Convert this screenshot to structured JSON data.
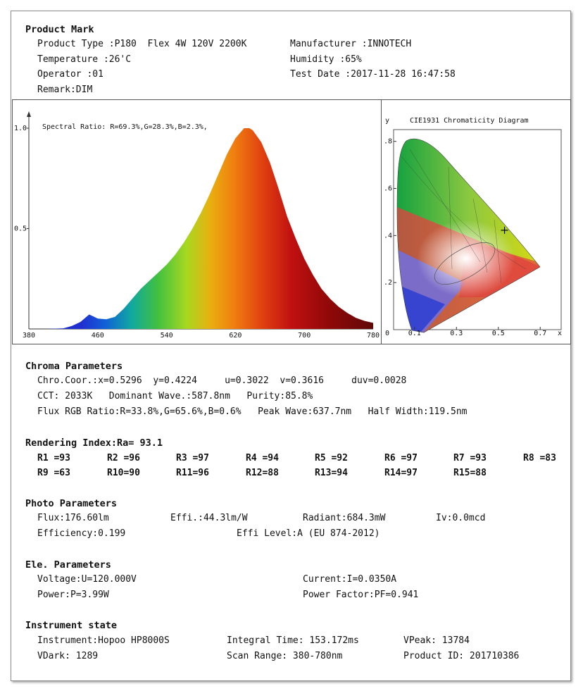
{
  "product_mark": {
    "heading": "Product Mark",
    "product_type": "Product Type :P180  Flex 4W 120V 2200K",
    "manufacturer": "Manufacturer :INNOTECH",
    "temperature": "Temperature :26'C",
    "humidity": "Humidity :65%",
    "operator": "Operator :01",
    "test_date": "Test Date :2017-11-28 16:47:58",
    "remark": "Remark:DIM"
  },
  "chart_data": [
    {
      "type": "area",
      "title": "Spectral Ratio:  R=69.3%,G=28.3%,B=2.3%,",
      "xlabel": "",
      "ylabel": "",
      "xlim": [
        380,
        780
      ],
      "ylim": [
        0,
        1.0
      ],
      "x_ticks": [
        "380",
        "460",
        "540",
        "620",
        "700",
        "780"
      ],
      "y_ticks": [
        "1.0",
        "0.5"
      ],
      "x": [
        380,
        400,
        420,
        430,
        440,
        450,
        455,
        460,
        470,
        480,
        490,
        500,
        510,
        520,
        530,
        540,
        550,
        560,
        570,
        580,
        590,
        600,
        610,
        620,
        630,
        636,
        640,
        650,
        660,
        670,
        680,
        690,
        700,
        710,
        720,
        730,
        740,
        750,
        760,
        770,
        780
      ],
      "values": [
        0,
        0,
        0.003,
        0.015,
        0.035,
        0.072,
        0.062,
        0.052,
        0.048,
        0.06,
        0.1,
        0.15,
        0.2,
        0.24,
        0.28,
        0.32,
        0.37,
        0.43,
        0.5,
        0.58,
        0.67,
        0.77,
        0.87,
        0.95,
        1.0,
        1.0,
        0.99,
        0.93,
        0.83,
        0.7,
        0.56,
        0.45,
        0.35,
        0.27,
        0.2,
        0.15,
        0.11,
        0.08,
        0.055,
        0.04,
        0.03
      ]
    },
    {
      "type": "scatter",
      "title": "CIE1931 Chromaticity Diagram",
      "xlabel": "x",
      "ylabel": "y",
      "x_ticks": [
        "0",
        "0.1",
        "0.3",
        "0.5",
        "0.7"
      ],
      "y_ticks": [
        ".8",
        ".6",
        ".4",
        ".2"
      ],
      "xlim": [
        0,
        0.8
      ],
      "ylim": [
        0,
        0.85
      ],
      "point": {
        "x": 0.5296,
        "y": 0.4224
      }
    }
  ],
  "chroma": {
    "heading": "Chroma Parameters",
    "line1": "Chro.Coor.:x=0.5296  y=0.4224     u=0.3022  v=0.3616     duv=0.0028",
    "line2": "CCT: 2033K   Dominant Wave.:587.8nm   Purity:85.8%",
    "line3": "Flux RGB Ratio:R=33.8%,G=65.6%,B=0.6%   Peak Wave:637.7nm   Half Width:119.5nm"
  },
  "rendering": {
    "heading": "Rendering Index:Ra= 93.1",
    "row1": [
      "R1 =93",
      "R2 =96",
      "R3 =97",
      "R4 =94",
      "R5 =92",
      "R6 =97",
      "R7 =93",
      "R8 =83"
    ],
    "row2": [
      "R9 =63",
      "R10=90",
      "R11=96",
      "R12=88",
      "R13=94",
      "R14=97",
      "R15=88"
    ]
  },
  "photo": {
    "heading": "Photo Parameters",
    "flux": "Flux:176.60lm",
    "effi": "Effi.:44.3lm/W",
    "radiant": "Radiant:684.3mW",
    "iv": "Iv:0.0mcd",
    "efficiency": "Efficiency:0.199",
    "effi_level": "Effi Level:A (EU 874-2012)"
  },
  "ele": {
    "heading": "Ele. Parameters",
    "voltage": "Voltage:U=120.000V",
    "current": "Current:I=0.0350A",
    "power": "Power:P=3.99W",
    "pf": "Power Factor:PF=0.941"
  },
  "instrument": {
    "heading": "Instrument state",
    "instrument": "Instrument:Hopoo HP8000S",
    "integral": "Integral Time: 153.172ms",
    "vpeak": "VPeak: 13784",
    "vdark": "VDark: 1289",
    "scan": "Scan Range: 380-780nm",
    "product_id": "Product ID: 201710386"
  }
}
